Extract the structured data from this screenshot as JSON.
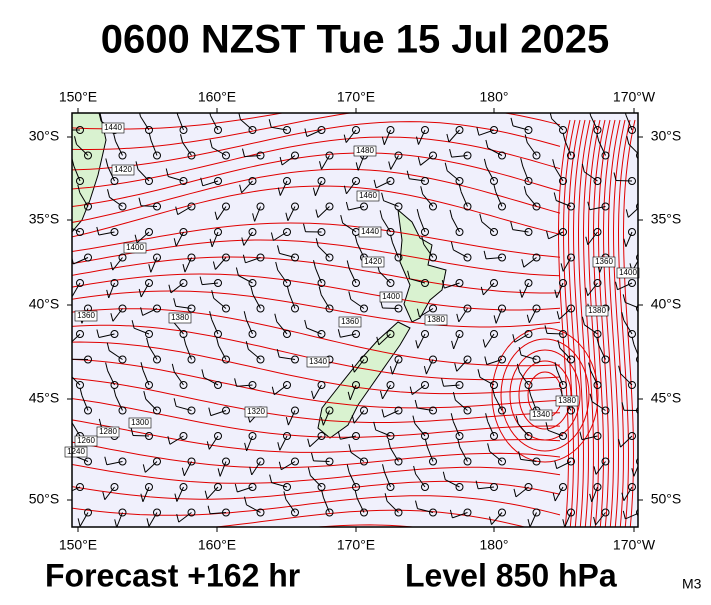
{
  "title": "0600 NZST Tue 15 Jul 2025",
  "longitude_labels": [
    "150°E",
    "160°E",
    "170°E",
    "180°",
    "170°W"
  ],
  "latitude_labels": [
    "30°S",
    "35°S",
    "40°S",
    "45°S",
    "50°S"
  ],
  "contour_labels": [
    "1440",
    "1420",
    "1480",
    "1460",
    "1440",
    "1420",
    "1400",
    "1400",
    "1380",
    "1360",
    "1380",
    "1360",
    "1340",
    "1320",
    "1300",
    "1280",
    "1260",
    "1240",
    "1360",
    "1400",
    "1380",
    "1380",
    "1340"
  ],
  "footer": {
    "forecast": "Forecast +162 hr",
    "level": "Level 850 hPa",
    "model": "M3"
  }
}
